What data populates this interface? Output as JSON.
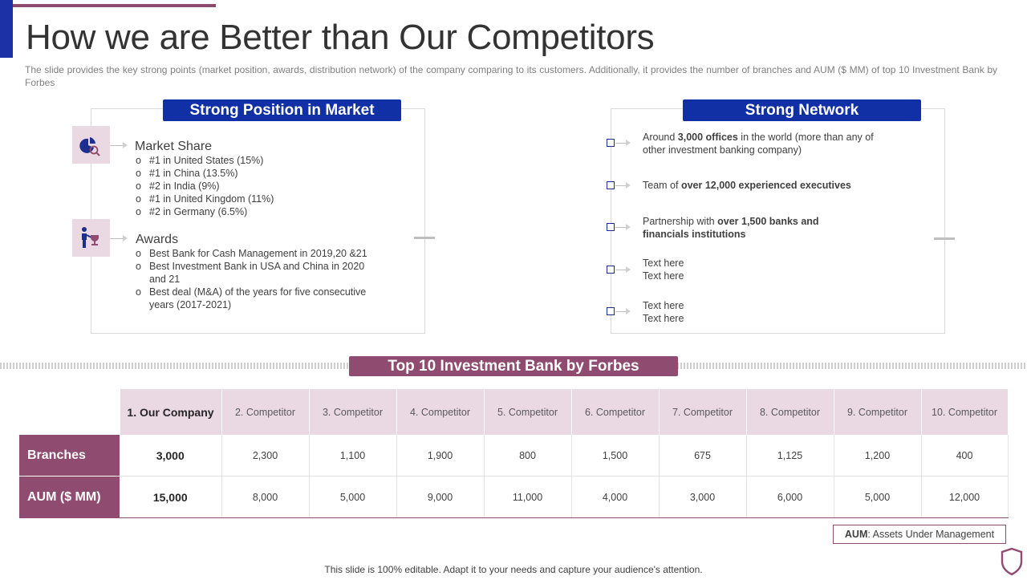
{
  "title": "How we are Better than Our Competitors",
  "subtitle": "The slide provides the key strong points (market position, awards, distribution network) of the company comparing to its customers. Additionally, it provides the number of branches and AUM ($ MM) of top 10 Investment Bank by Forbes",
  "colors": {
    "blue": "#1230a6",
    "purple": "#8f4b70",
    "light_purple": "#ead9e3"
  },
  "market": {
    "heading": "Strong Position in Market",
    "market_share": {
      "icon": "pie-search-icon",
      "title": "Market Share",
      "items": [
        "#1 in United States (15%)",
        "#1 in China (13.5%)",
        "#2 in India (9%)",
        "#1 in United Kingdom (11%)",
        "#2 in Germany (6.5%)"
      ]
    },
    "awards": {
      "icon": "person-trophy-icon",
      "title": "Awards",
      "items": [
        [
          "Best Bank for Cash Management in 2019,20 &21"
        ],
        [
          "Best Investment Bank in USA and China in 2020",
          "and 21"
        ],
        [
          "Best deal (M&A) of the years for five consecutive",
          "years (2017-2021)"
        ]
      ]
    },
    "bullet": "o"
  },
  "network": {
    "heading": "Strong Network",
    "items": [
      {
        "a": "Around ",
        "b": "3,000 offices",
        "c": " in the world (more than any of",
        "line2": "other investment banking company)"
      },
      {
        "a": "Team of ",
        "b": "over 12,000 experienced executives",
        "c": "",
        "line2": ""
      },
      {
        "a": "Partnership with ",
        "b": "over 1,500 banks and",
        "c": "",
        "line2_bold": "financials institutions"
      },
      {
        "a": "Text here",
        "b": "",
        "c": "",
        "line2": "Text here"
      },
      {
        "a": "Text here",
        "b": "",
        "c": "",
        "line2": "Text here"
      }
    ]
  },
  "table": {
    "heading": "Top 10 Investment Bank by Forbes",
    "columns": [
      "1. Our Company",
      "2. Competitor",
      "3. Competitor",
      "4. Competitor",
      "5. Competitor",
      "6. Competitor",
      "7. Competitor",
      "8. Competitor",
      "9. Competitor",
      "10. Competitor"
    ],
    "rows": [
      {
        "label": "Branches",
        "values": [
          "3,000",
          "2,300",
          "1,100",
          "1,900",
          "800",
          "1,500",
          "675",
          "1,125",
          "1,200",
          "400"
        ]
      },
      {
        "label": "AUM ($ MM)",
        "values": [
          "15,000",
          "8,000",
          "5,000",
          "9,000",
          "11,000",
          "4,000",
          "3,000",
          "6,000",
          "5,000",
          "12,000"
        ]
      }
    ]
  },
  "aum_note": {
    "abbr": "AUM",
    "text": ": Assets Under Management"
  },
  "footer": "This slide is 100% editable. Adapt it to your needs and capture your audience's attention.",
  "logo_icon": "shield-icon"
}
